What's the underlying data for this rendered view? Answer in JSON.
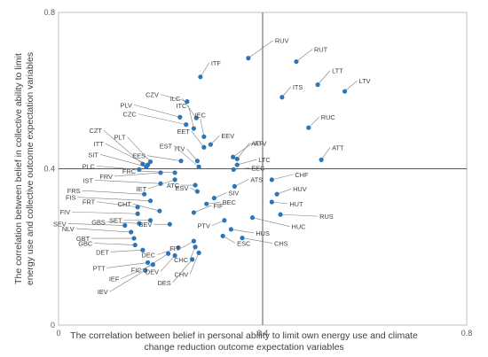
{
  "chart_data": {
    "type": "scatter",
    "xlabel_lines": [
      "The correlation between belief in personal ability to limit own energy use and climate",
      "change reduction  outcome expectation variables"
    ],
    "ylabel_lines": [
      "The correlation between belief in collective ability to limit",
      "energy use and collective outcome  expectation variables"
    ],
    "xlim": [
      0,
      0.8
    ],
    "ylim": [
      0,
      0.8
    ],
    "x_ticks": [
      {
        "value": 0,
        "label": "0"
      },
      {
        "value": 0.4,
        "label": "0.4"
      },
      {
        "value": 0.8,
        "label": "0.8"
      }
    ],
    "y_ticks": [
      {
        "value": 0,
        "label": "0"
      },
      {
        "value": 0.4,
        "label": "0.4"
      },
      {
        "value": 0.8,
        "label": "0.8"
      }
    ],
    "reference_lines": {
      "x": 0.4,
      "y": 0.4
    },
    "grid": false,
    "marker_color": "#2e75b6",
    "line_color": "#7f7f7f",
    "points": [
      {
        "label": "RUV",
        "x": 0.372,
        "y": 0.683
      },
      {
        "label": "RUT",
        "x": 0.466,
        "y": 0.674
      },
      {
        "label": "LTT",
        "x": 0.508,
        "y": 0.615
      },
      {
        "label": "LTV",
        "x": 0.561,
        "y": 0.598
      },
      {
        "label": "ITS",
        "x": 0.438,
        "y": 0.583
      },
      {
        "label": "RUC",
        "x": 0.49,
        "y": 0.505
      },
      {
        "label": "ATT",
        "x": 0.515,
        "y": 0.423
      },
      {
        "label": "ITF",
        "x": 0.278,
        "y": 0.635
      },
      {
        "label": "CZV",
        "x": 0.252,
        "y": 0.572
      },
      {
        "label": "PLV",
        "x": 0.238,
        "y": 0.532
      },
      {
        "label": "ILC",
        "x": 0.27,
        "y": 0.53
      },
      {
        "label": "ITC",
        "x": 0.265,
        "y": 0.503
      },
      {
        "label": "IEC",
        "x": 0.285,
        "y": 0.482
      },
      {
        "label": "EEV",
        "x": 0.298,
        "y": 0.462
      },
      {
        "label": "CZC",
        "x": 0.25,
        "y": 0.513
      },
      {
        "label": "EET",
        "x": 0.285,
        "y": 0.455
      },
      {
        "label": "ATF",
        "x": 0.35,
        "y": 0.425
      },
      {
        "label": "ATV",
        "x": 0.342,
        "y": 0.43
      },
      {
        "label": "LTC",
        "x": 0.35,
        "y": 0.41
      },
      {
        "label": "ITV",
        "x": 0.272,
        "y": 0.42
      },
      {
        "label": "EST",
        "x": 0.275,
        "y": 0.405
      },
      {
        "label": "CZT",
        "x": 0.165,
        "y": 0.412
      },
      {
        "label": "ITT",
        "x": 0.175,
        "y": 0.41
      },
      {
        "label": "PLT",
        "x": 0.18,
        "y": 0.418
      },
      {
        "label": "SIT",
        "x": 0.172,
        "y": 0.405
      },
      {
        "label": "PLC",
        "x": 0.158,
        "y": 0.398
      },
      {
        "label": "EES",
        "x": 0.24,
        "y": 0.42
      },
      {
        "label": "FRV",
        "x": 0.2,
        "y": 0.39
      },
      {
        "label": "FRC",
        "x": 0.228,
        "y": 0.39
      },
      {
        "label": "EEC",
        "x": 0.343,
        "y": 0.398
      },
      {
        "label": "CHF",
        "x": 0.418,
        "y": 0.372
      },
      {
        "label": "IST",
        "x": 0.2,
        "y": 0.362
      },
      {
        "label": "IET",
        "x": 0.228,
        "y": 0.372
      },
      {
        "label": "ATC",
        "x": 0.268,
        "y": 0.358
      },
      {
        "label": "ESV",
        "x": 0.272,
        "y": 0.342
      },
      {
        "label": "ATS",
        "x": 0.345,
        "y": 0.355
      },
      {
        "label": "HUV",
        "x": 0.428,
        "y": 0.335
      },
      {
        "label": "FRS",
        "x": 0.168,
        "y": 0.335
      },
      {
        "label": "SIV",
        "x": 0.305,
        "y": 0.325
      },
      {
        "label": "HUT",
        "x": 0.418,
        "y": 0.315
      },
      {
        "label": "BEC",
        "x": 0.29,
        "y": 0.31
      },
      {
        "label": "FIS",
        "x": 0.18,
        "y": 0.318
      },
      {
        "label": "RUS",
        "x": 0.435,
        "y": 0.283
      },
      {
        "label": "FRT",
        "x": 0.155,
        "y": 0.302
      },
      {
        "label": "CHT",
        "x": 0.198,
        "y": 0.292
      },
      {
        "label": "FIF",
        "x": 0.265,
        "y": 0.288
      },
      {
        "label": "HUC",
        "x": 0.38,
        "y": 0.275
      },
      {
        "label": "FIV",
        "x": 0.155,
        "y": 0.285
      },
      {
        "label": "SET",
        "x": 0.18,
        "y": 0.268
      },
      {
        "label": "PTV",
        "x": 0.325,
        "y": 0.268
      },
      {
        "label": "SEV",
        "x": 0.13,
        "y": 0.255
      },
      {
        "label": "GBS",
        "x": 0.158,
        "y": 0.26
      },
      {
        "label": "BEV",
        "x": 0.218,
        "y": 0.258
      },
      {
        "label": "HUS",
        "x": 0.338,
        "y": 0.245
      },
      {
        "label": "NLV",
        "x": 0.142,
        "y": 0.238
      },
      {
        "label": "ESC",
        "x": 0.322,
        "y": 0.228
      },
      {
        "label": "CHS",
        "x": 0.36,
        "y": 0.223
      },
      {
        "label": "GBT",
        "x": 0.148,
        "y": 0.222
      },
      {
        "label": "FIT",
        "x": 0.265,
        "y": 0.215
      },
      {
        "label": "GBC",
        "x": 0.15,
        "y": 0.205
      },
      {
        "label": "CHC",
        "x": 0.268,
        "y": 0.2
      },
      {
        "label": "DET",
        "x": 0.165,
        "y": 0.192
      },
      {
        "label": "DEC",
        "x": 0.235,
        "y": 0.198
      },
      {
        "label": "CHV",
        "x": 0.275,
        "y": 0.185
      },
      {
        "label": "FIC",
        "x": 0.215,
        "y": 0.183
      },
      {
        "label": "DEV",
        "x": 0.228,
        "y": 0.178
      },
      {
        "label": "DES",
        "x": 0.262,
        "y": 0.168
      },
      {
        "label": "PTT",
        "x": 0.175,
        "y": 0.16
      },
      {
        "label": "IEF",
        "x": 0.185,
        "y": 0.155
      },
      {
        "label": "IEV",
        "x": 0.17,
        "y": 0.14
      }
    ]
  }
}
